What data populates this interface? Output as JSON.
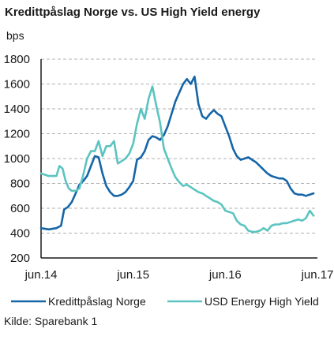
{
  "chart_data": {
    "type": "line",
    "title": "Kredittpåslag Norge vs. US High Yield energy",
    "ylabel": "bps",
    "ylim": [
      200,
      1800
    ],
    "yticks": [
      1800,
      1600,
      1400,
      1200,
      1000,
      800,
      600,
      400,
      200
    ],
    "x_tick_labels": [
      "jun.14",
      "jun.15",
      "jun.16",
      "jun.17"
    ],
    "x_unit": "months since jun.14",
    "xlim": [
      0,
      36
    ],
    "grid": "dashed horizontal",
    "legend_position": "bottom",
    "source": "Kilde: Sparebank 1",
    "series": [
      {
        "name": "Kredittpåslag Norge",
        "color": "#1565a8",
        "points": [
          [
            0,
            440
          ],
          [
            1,
            430
          ],
          [
            2,
            440
          ],
          [
            2.6,
            460
          ],
          [
            3,
            590
          ],
          [
            3.5,
            610
          ],
          [
            4,
            650
          ],
          [
            4.5,
            720
          ],
          [
            5,
            790
          ],
          [
            5.5,
            820
          ],
          [
            6,
            860
          ],
          [
            6.5,
            940
          ],
          [
            7,
            1020
          ],
          [
            7.5,
            1010
          ],
          [
            8,
            880
          ],
          [
            8.5,
            780
          ],
          [
            9,
            730
          ],
          [
            9.5,
            700
          ],
          [
            10,
            700
          ],
          [
            10.5,
            710
          ],
          [
            11,
            730
          ],
          [
            11.5,
            770
          ],
          [
            12,
            820
          ],
          [
            12.5,
            990
          ],
          [
            13,
            1010
          ],
          [
            13.5,
            1060
          ],
          [
            14,
            1150
          ],
          [
            14.5,
            1180
          ],
          [
            15,
            1170
          ],
          [
            15.5,
            1150
          ],
          [
            16,
            1190
          ],
          [
            16.5,
            1260
          ],
          [
            17,
            1360
          ],
          [
            17.5,
            1460
          ],
          [
            18,
            1530
          ],
          [
            18.5,
            1600
          ],
          [
            19,
            1640
          ],
          [
            19.5,
            1600
          ],
          [
            20,
            1660
          ],
          [
            20.5,
            1440
          ],
          [
            21,
            1340
          ],
          [
            21.5,
            1320
          ],
          [
            22,
            1360
          ],
          [
            22.5,
            1390
          ],
          [
            23,
            1360
          ],
          [
            23.5,
            1340
          ],
          [
            24,
            1260
          ],
          [
            24.5,
            1180
          ],
          [
            25,
            1080
          ],
          [
            25.5,
            1020
          ],
          [
            26,
            990
          ],
          [
            26.5,
            1000
          ],
          [
            27,
            1010
          ],
          [
            27.5,
            990
          ],
          [
            28,
            970
          ],
          [
            28.5,
            940
          ],
          [
            29,
            910
          ],
          [
            29.5,
            880
          ],
          [
            30,
            860
          ],
          [
            30.5,
            850
          ],
          [
            31,
            840
          ],
          [
            31.5,
            840
          ],
          [
            32,
            820
          ],
          [
            32.5,
            760
          ],
          [
            33,
            720
          ],
          [
            33.5,
            710
          ],
          [
            34,
            710
          ],
          [
            34.5,
            700
          ],
          [
            35,
            710
          ],
          [
            35.5,
            720
          ]
        ]
      },
      {
        "name": "USD Energy High Yield",
        "color": "#5bc4c0",
        "points": [
          [
            0,
            880
          ],
          [
            1,
            860
          ],
          [
            2,
            860
          ],
          [
            2.4,
            940
          ],
          [
            2.8,
            920
          ],
          [
            3.2,
            820
          ],
          [
            3.6,
            760
          ],
          [
            4,
            740
          ],
          [
            4.5,
            740
          ],
          [
            5,
            760
          ],
          [
            5.5,
            870
          ],
          [
            6,
            1000
          ],
          [
            6.5,
            1060
          ],
          [
            7,
            1060
          ],
          [
            7.5,
            1140
          ],
          [
            8,
            1020
          ],
          [
            8.5,
            1100
          ],
          [
            9,
            1100
          ],
          [
            9.5,
            1140
          ],
          [
            10,
            960
          ],
          [
            10.5,
            980
          ],
          [
            11,
            1000
          ],
          [
            11.5,
            1040
          ],
          [
            12,
            1120
          ],
          [
            12.5,
            1280
          ],
          [
            13,
            1400
          ],
          [
            13.5,
            1320
          ],
          [
            14,
            1480
          ],
          [
            14.5,
            1580
          ],
          [
            15,
            1430
          ],
          [
            15.5,
            1290
          ],
          [
            16,
            1080
          ],
          [
            16.5,
            1000
          ],
          [
            17,
            920
          ],
          [
            17.5,
            850
          ],
          [
            18,
            810
          ],
          [
            18.5,
            780
          ],
          [
            19,
            790
          ],
          [
            19.5,
            770
          ],
          [
            20,
            750
          ],
          [
            20.5,
            730
          ],
          [
            21,
            720
          ],
          [
            21.5,
            700
          ],
          [
            22,
            680
          ],
          [
            22.5,
            660
          ],
          [
            23,
            650
          ],
          [
            23.5,
            630
          ],
          [
            24,
            580
          ],
          [
            24.5,
            570
          ],
          [
            25,
            560
          ],
          [
            25.5,
            500
          ],
          [
            26,
            470
          ],
          [
            26.5,
            460
          ],
          [
            27,
            420
          ],
          [
            27.5,
            410
          ],
          [
            28,
            410
          ],
          [
            28.5,
            420
          ],
          [
            29,
            440
          ],
          [
            29.5,
            420
          ],
          [
            30,
            460
          ],
          [
            30.5,
            470
          ],
          [
            31,
            470
          ],
          [
            31.5,
            480
          ],
          [
            32,
            480
          ],
          [
            32.5,
            490
          ],
          [
            33,
            500
          ],
          [
            33.5,
            510
          ],
          [
            34,
            500
          ],
          [
            34.5,
            520
          ],
          [
            35,
            580
          ],
          [
            35.5,
            540
          ]
        ]
      }
    ]
  }
}
